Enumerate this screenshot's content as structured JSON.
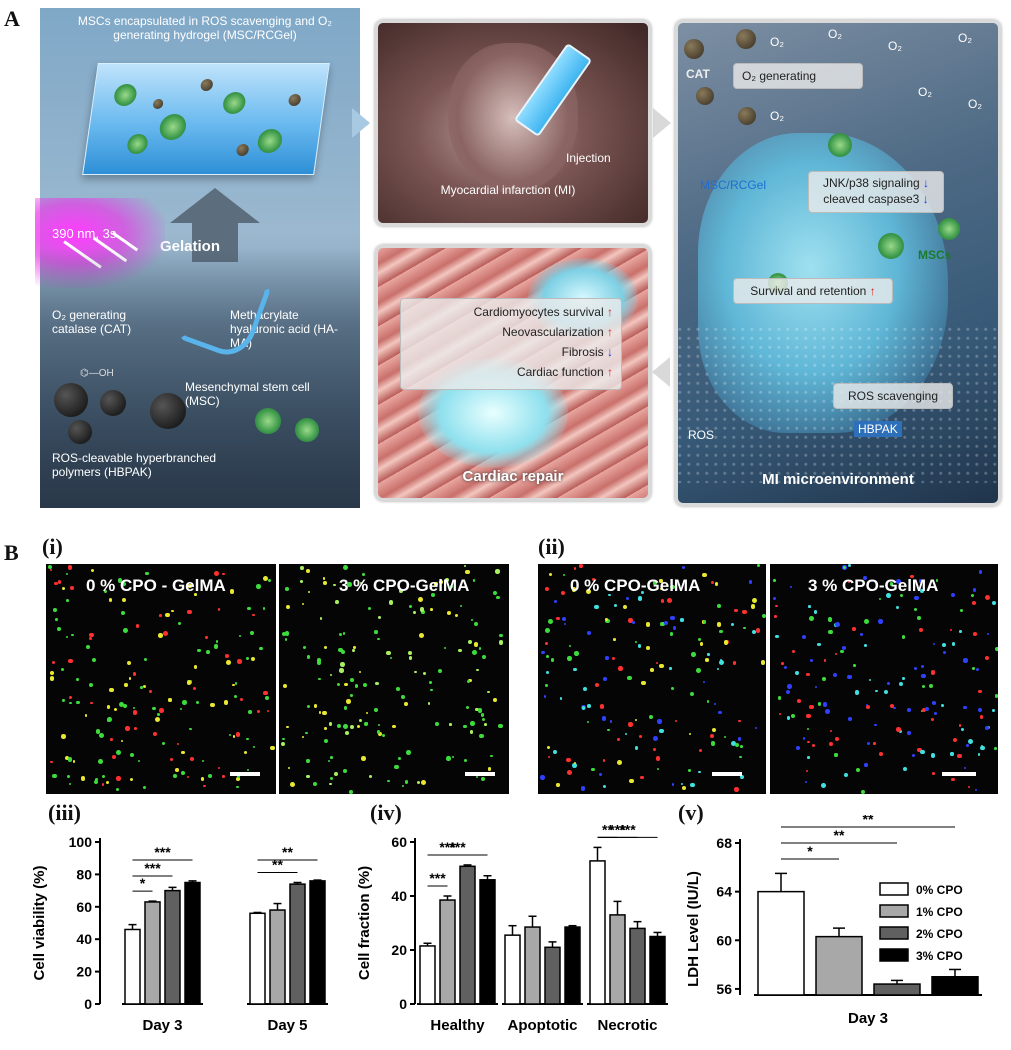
{
  "figure": {
    "label_A": "A",
    "label_B": "B",
    "sub_labels": [
      "(i)",
      "(ii)",
      "(iii)",
      "(iv)",
      "(v)"
    ]
  },
  "panelA": {
    "hydrogel_title": "MSCs encapsulated in ROS scavenging and O₂ generating hydrogel (MSC/RCGel)",
    "uv_label": "390 nm, 3s",
    "gelation": "Gelation",
    "cat_label": "O₂ generating catalase (CAT)",
    "hama_label": "Methacrylate hyaluronic acid (HA-MA)",
    "msc_label": "Mesenchymal stem cell (MSC)",
    "hbpak_label": "ROS-cleavable hyperbranched polymers (HBPAK)",
    "injection": "Injection",
    "mi_label": "Myocardial infarction (MI)",
    "repair_items": [
      "Cardiomyocytes survival",
      "Neovascularization",
      "Fibrosis",
      "Cardiac function"
    ],
    "repair_arrows": [
      "↑",
      "↑",
      "↓",
      "↑"
    ],
    "cardiac_repair": "Cardiac repair",
    "cat_short": "CAT",
    "o2_generating": "O₂ generating",
    "o2": "O₂",
    "msc_rcgel": "MSC/RCGel",
    "jnk": "JNK/p38 signaling",
    "caspase": "cleaved caspase3",
    "mscs": "MSCs",
    "survival": "Survival and retention",
    "ros_scavenging": "ROS scavenging",
    "ros": "ROS",
    "hbpak": "HBPAK",
    "mi_micro": "MI microenvironment",
    "colors": {
      "up_arrow": "#e02020",
      "down_arrow": "#2233dd"
    }
  },
  "micrographs": {
    "i_left": "0 % CPO -  GelMA",
    "i_right": "3 %  CPO-GelMA",
    "ii_left": "0 % CPO-GelMA",
    "ii_right": "3 %  CPO-GelMA"
  },
  "chart_data": [
    {
      "type": "bar",
      "panel": "(iii)",
      "ylabel": "Cell viability (%)",
      "categories": [
        "Day 3",
        "Day 5"
      ],
      "series": [
        {
          "values": [
            46,
            56
          ],
          "color": "#ffffff"
        },
        {
          "values": [
            63,
            58
          ],
          "color": "#a8a8a8"
        },
        {
          "values": [
            70,
            74
          ],
          "color": "#606060"
        },
        {
          "values": [
            75,
            76
          ],
          "color": "#000000"
        }
      ],
      "errors": [
        [
          3,
          0.5
        ],
        [
          0.5,
          4
        ],
        [
          2,
          1
        ],
        [
          1,
          0.5
        ]
      ],
      "ylim": [
        0,
        100
      ],
      "yticks": [
        0,
        20,
        40,
        60,
        80,
        100
      ],
      "significance": [
        {
          "group": 0,
          "from": 0,
          "to": 1,
          "label": "*"
        },
        {
          "group": 0,
          "from": 0,
          "to": 2,
          "label": "***"
        },
        {
          "group": 0,
          "from": 0,
          "to": 3,
          "label": "***"
        },
        {
          "group": 1,
          "from": 0,
          "to": 2,
          "label": "**"
        },
        {
          "group": 1,
          "from": 0,
          "to": 3,
          "label": "**"
        }
      ]
    },
    {
      "type": "bar",
      "panel": "(iv)",
      "ylabel": "Cell fraction (%)",
      "categories": [
        "Healthy",
        "Apoptotic",
        "Necrotic"
      ],
      "series": [
        {
          "values": [
            21.5,
            25.5,
            53
          ],
          "color": "#ffffff"
        },
        {
          "values": [
            38.5,
            28.5,
            33
          ],
          "color": "#a8a8a8"
        },
        {
          "values": [
            51,
            21,
            28
          ],
          "color": "#606060"
        },
        {
          "values": [
            46,
            28.5,
            25
          ],
          "color": "#000000"
        }
      ],
      "errors": [
        [
          1,
          3.5,
          5
        ],
        [
          1.5,
          4,
          5
        ],
        [
          0.5,
          2,
          2.5
        ],
        [
          1.5,
          0.5,
          1.5
        ]
      ],
      "ylim": [
        0,
        60
      ],
      "yticks": [
        0,
        20,
        40,
        60
      ],
      "significance": [
        {
          "group": 0,
          "from": 0,
          "to": 1,
          "label": "***"
        },
        {
          "group": 0,
          "from": 0,
          "to": 2,
          "label": "***"
        },
        {
          "group": 0,
          "from": 0,
          "to": 3,
          "label": "***"
        },
        {
          "group": 2,
          "from": 0,
          "to": 1,
          "label": "**"
        },
        {
          "group": 2,
          "from": 0,
          "to": 2,
          "label": "***"
        },
        {
          "group": 2,
          "from": 0,
          "to": 3,
          "label": "***"
        }
      ]
    },
    {
      "type": "bar",
      "panel": "(v)",
      "ylabel": "LDH Level (IU/L)",
      "xlabel": "Day 3",
      "categories": [
        "0% CPO",
        "1% CPO",
        "2% CPO",
        "3% CPO"
      ],
      "values": [
        64,
        60.3,
        56.4,
        57
      ],
      "errors": [
        1.5,
        0.7,
        0.3,
        0.6
      ],
      "colors": [
        "#ffffff",
        "#a8a8a8",
        "#606060",
        "#000000"
      ],
      "ylim": [
        55.5,
        68
      ],
      "yticks": [
        56,
        60,
        64,
        68
      ],
      "legend": [
        "0% CPO",
        "1% CPO",
        "2% CPO",
        "3% CPO"
      ],
      "legend_position": "right",
      "significance": [
        {
          "from": 0,
          "to": 1,
          "label": "*"
        },
        {
          "from": 0,
          "to": 2,
          "label": "**"
        },
        {
          "from": 0,
          "to": 3,
          "label": "**"
        }
      ]
    }
  ]
}
